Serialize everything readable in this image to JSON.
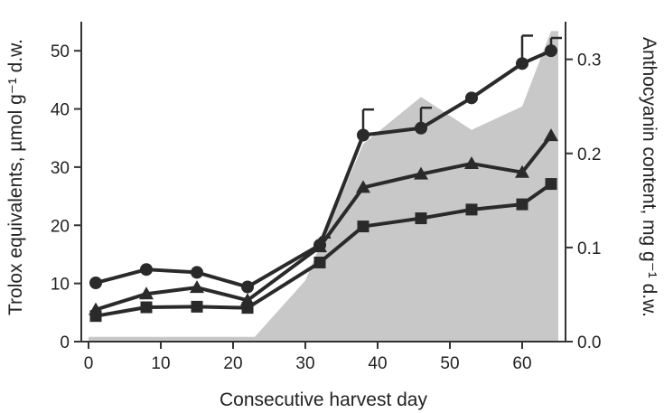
{
  "chart_data": {
    "type": "line",
    "title": "",
    "xlabel": "Consecutive harvest day",
    "ylabel": "Trolox equivalents, µmol g⁻¹ d.w.",
    "ylabel_right": "Anthocyanin content, mg g⁻¹ d.w.",
    "xlim": [
      -1,
      66
    ],
    "ylim": [
      0,
      55
    ],
    "ylim_right": [
      0,
      0.34
    ],
    "xticks": [
      0,
      10,
      20,
      30,
      40,
      50,
      60
    ],
    "yticks": [
      0,
      10,
      20,
      30,
      40,
      50
    ],
    "yticks_right": [
      "0.0",
      "0.1",
      "0.2",
      "0.3"
    ],
    "grid": false,
    "legend": "none",
    "series": [
      {
        "marker": "circle",
        "x": [
          1,
          8,
          15,
          22,
          32,
          38,
          46,
          53,
          60,
          64
        ],
        "values": [
          10.1,
          12.4,
          11.9,
          9.4,
          16.6,
          35.5,
          36.7,
          41.9,
          47.8,
          50.0
        ],
        "error_up": [
          null,
          null,
          null,
          null,
          1.3,
          4.4,
          3.5,
          null,
          4.8,
          2.2
        ]
      },
      {
        "marker": "triangle",
        "x": [
          1,
          8,
          15,
          22,
          32,
          38,
          46,
          53,
          60,
          64
        ],
        "values": [
          5.5,
          8.2,
          9.3,
          7.1,
          16.3,
          26.5,
          28.8,
          30.6,
          29.1,
          35.4
        ]
      },
      {
        "marker": "square",
        "x": [
          1,
          8,
          15,
          22,
          32,
          38,
          46,
          53,
          60,
          64
        ],
        "values": [
          4.4,
          5.9,
          6.0,
          5.8,
          13.6,
          19.8,
          21.2,
          22.7,
          23.6,
          27.1
        ]
      }
    ],
    "area": {
      "axis": "right",
      "x": [
        0,
        23,
        30,
        38,
        46,
        53,
        60,
        64,
        65
      ],
      "values": [
        0.005,
        0.005,
        0.065,
        0.21,
        0.26,
        0.225,
        0.25,
        0.33,
        0.33
      ]
    },
    "colors": {
      "line": "#2a2a2a",
      "area": "#c8c8c8",
      "axis": "#333333"
    }
  }
}
